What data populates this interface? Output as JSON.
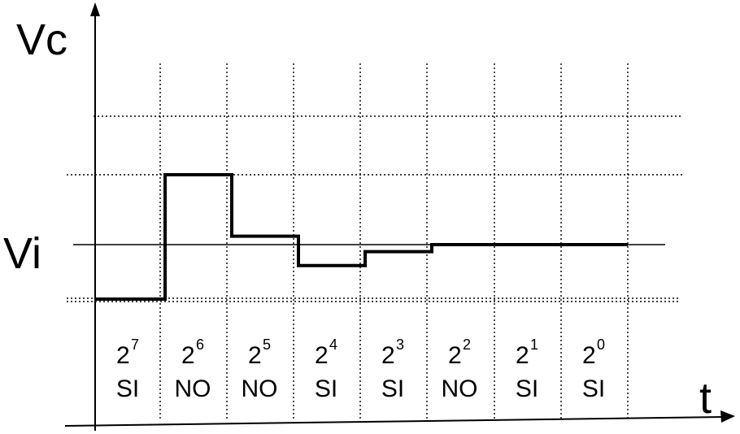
{
  "axes": {
    "y_label": "Vc",
    "x_label": "t",
    "reference_label": "Vi"
  },
  "bits": [
    {
      "base": "2",
      "exponent": "7",
      "result": "SI"
    },
    {
      "base": "2",
      "exponent": "6",
      "result": "NO"
    },
    {
      "base": "2",
      "exponent": "5",
      "result": "NO"
    },
    {
      "base": "2",
      "exponent": "4",
      "result": "SI"
    },
    {
      "base": "2",
      "exponent": "3",
      "result": "SI"
    },
    {
      "base": "2",
      "exponent": "2",
      "result": "NO"
    },
    {
      "base": "2",
      "exponent": "1",
      "result": "SI"
    },
    {
      "base": "2",
      "exponent": "0",
      "result": "SI"
    }
  ],
  "waveform_levels_relative_to_vi": [
    -1,
    1,
    0.12,
    -0.3,
    -0.1,
    0,
    0,
    0
  ]
}
